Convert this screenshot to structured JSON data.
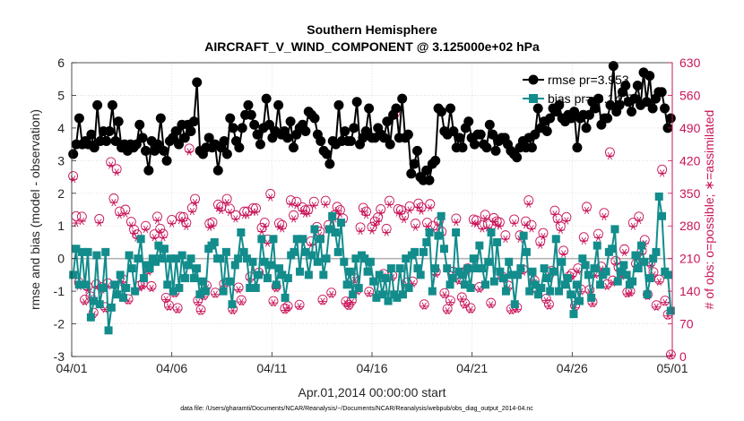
{
  "chart_data": {
    "type": "line",
    "title": "Southern Hemisphere",
    "subtitle": "AIRCRAFT_V_WIND_COMPONENT @ 3.125000e+02 hPa",
    "xlabel": "Apr.01,2014 00:00:00 start",
    "ylabel": "rmse and bias (model - observation)",
    "y2label": "# of obs: o=possible; ∗=assimilated",
    "footnote": "data file: /Users/gharamti/Documents/NCAR/Reanalysis/~/Documents/NCAR/Reanalysis/webpub/obs_diag_output_2014-04.nc",
    "xlim": [
      0,
      30
    ],
    "ylim": [
      -3,
      6
    ],
    "y2lim": [
      0,
      630
    ],
    "xticks": [
      0,
      5,
      10,
      15,
      20,
      25,
      30
    ],
    "xticklabels": [
      "04/01",
      "04/06",
      "04/11",
      "04/16",
      "04/21",
      "04/26",
      "05/01"
    ],
    "yticks": [
      -3,
      -2,
      -1,
      0,
      1,
      2,
      3,
      4,
      5,
      6
    ],
    "yticklabels": [
      "-3",
      "-2",
      "-1",
      "0",
      "1",
      "2",
      "3",
      "4",
      "5",
      "6"
    ],
    "y2ticks": [
      0,
      70,
      140,
      210,
      280,
      350,
      420,
      490,
      560,
      630
    ],
    "y2ticklabels": [
      "0",
      "70",
      "140",
      "210",
      "280",
      "350",
      "420",
      "490",
      "560",
      "630"
    ],
    "grid": true,
    "legend_position": "top-right",
    "colors": {
      "rmse": "#000000",
      "bias": "#138c8c",
      "obs": "#c8155a",
      "zero_line": "#b3b3b3",
      "grid": "#d9d9d9"
    },
    "series": [
      {
        "name": "rmse pr=3.953",
        "values": [
          3.2,
          3.5,
          4.3,
          3.5,
          3.6,
          3.5,
          3.8,
          3.4,
          4.7,
          3.6,
          3.9,
          3.6,
          3.9,
          4.7,
          3.6,
          4.2,
          3.4,
          3.5,
          3.3,
          3.5,
          3.4,
          3.5,
          4.1,
          3.7,
          3.3,
          2.7,
          3.6,
          3.3,
          3.5,
          4.3,
          3.3,
          3.0,
          3.6,
          3.7,
          3.9,
          3.5,
          4.1,
          3.7,
          4.1,
          3.9,
          4.2,
          5.4,
          3.3,
          3.2,
          3.4,
          3.7,
          3.4,
          3.5,
          2.7,
          3.4,
          3.6,
          3.2,
          4.3,
          4.0,
          3.6,
          3.4,
          4.0,
          4.4,
          4.7,
          4.4,
          4.1,
          3.8,
          3.5,
          4.0,
          4.9,
          4.1,
          3.7,
          3.9,
          4.7,
          3.8,
          3.9,
          3.7,
          4.2,
          3.4,
          3.8,
          4.0,
          4.1,
          3.9,
          4.5,
          4.4,
          4.3,
          3.8,
          3.6,
          3.3,
          3.2,
          2.9,
          3.6,
          3.5,
          4.7,
          3.6,
          3.9,
          3.6,
          3.6,
          4.0,
          4.8,
          3.5,
          3.7,
          3.9,
          4.6,
          3.7,
          3.7,
          4.0,
          3.8,
          3.7,
          4.2,
          3.5,
          4.4,
          4.6,
          3.7,
          4.9,
          3.7,
          3.8,
          2.6,
          2.9,
          3.3,
          2.5,
          2.4,
          2.7,
          2.4,
          2.9,
          3.0,
          4.6,
          4.5,
          3.9,
          3.8,
          4.6,
          3.9,
          3.4,
          3.7,
          3.4,
          4.0,
          4.2,
          3.7,
          3.5,
          3.8,
          3.8,
          3.5,
          3.4,
          4.1,
          3.8,
          3.3,
          3.6,
          3.7,
          3.7,
          3.5,
          3.3,
          3.2,
          3.1,
          3.4,
          3.6,
          3.4,
          3.7,
          3.4,
          3.8,
          4.6,
          4.0,
          4.2,
          3.9,
          4.3,
          4.6,
          4.5,
          4.7,
          4.3,
          4.2,
          4.4,
          4.3,
          4.5,
          3.4,
          4.3,
          4.4,
          4.0,
          4.4,
          4.8,
          4.6,
          4.9,
          4.1,
          4.3,
          4.3,
          4.7,
          5.9,
          4.5,
          4.7,
          5.1,
          5.3,
          4.8,
          4.5,
          4.9,
          5.3,
          4.7,
          5.7,
          4.8,
          5.6,
          4.6,
          4.9,
          5.1,
          5.1,
          4.6,
          4.0,
          4.3
        ]
      },
      {
        "name": "bias pr=-0.1437",
        "values": [
          -0.5,
          0.3,
          -0.8,
          0.2,
          -0.8,
          0.2,
          -1.8,
          -1.3,
          0.1,
          -1.4,
          -0.9,
          0.2,
          -2.2,
          -1.5,
          -0.8,
          -1.1,
          -0.5,
          -1.2,
          -0.9,
          0.1,
          -0.3,
          -1.0,
          0.0,
          0.6,
          -0.6,
          -0.2,
          -0.3,
          0.0,
          -0.1,
          0.4,
          0.0,
          0.3,
          -0.8,
          0.0,
          -1.0,
          0.0,
          -0.9,
          0.1,
          -0.6,
          -0.2,
          0.0,
          -0.6,
          -0.3,
          -1.1,
          -0.7,
          -1.0,
          0.3,
          0.4,
          0.5,
          0.0,
          0.0,
          -1.0,
          0.2,
          -0.7,
          -1.4,
          -0.2,
          0.0,
          0.8,
          0.2,
          0.0,
          -0.9,
          -0.1,
          -0.9,
          -0.5,
          0.6,
          -0.1,
          -0.6,
          -0.2,
          0.6,
          -0.8,
          -0.3,
          -0.5,
          -1.2,
          -0.6,
          0.1,
          0.2,
          0.6,
          -0.4,
          0.6,
          0.2,
          -0.5,
          0.1,
          0.9,
          -0.1,
          0.6,
          -0.5,
          0.0,
          0.9,
          1.3,
          0.8,
          0.2,
          1.1,
          -0.1,
          -0.8,
          -0.4,
          -1.1,
          0.0,
          -0.9,
          0.1,
          0.0,
          -0.4,
          -0.1,
          -0.7,
          -1.2,
          -0.5,
          -1.1,
          -0.6,
          -1.3,
          -0.3,
          -1.1,
          -1.2,
          -0.3,
          -1.1,
          0.0,
          -0.9,
          0.1,
          0.2,
          -0.3,
          -0.5,
          0.2,
          0.5,
          0.8,
          -1.0,
          -0.3,
          0.7,
          1.3,
          0.3,
          -0.3,
          -0.8,
          -0.6,
          0.8,
          -0.4,
          -0.5,
          -0.8,
          -0.3,
          -0.9,
          0.0,
          -0.3,
          0.4,
          -0.3,
          -0.8,
          -0.1,
          0.8,
          -0.7,
          0.5,
          -0.4,
          -0.6,
          -1.0,
          -0.1,
          -0.5,
          -1.4,
          -0.5,
          -0.3,
          0.7,
          0.2,
          -1.0,
          -0.4,
          -0.8,
          -1.1,
          -0.9,
          -0.3,
          -0.6,
          -1.0,
          -0.4,
          0.6,
          -1.0,
          -0.1,
          -0.8,
          -0.6,
          -1.1,
          -1.7,
          -0.8,
          -1.3,
          0.0,
          -0.2,
          -0.5,
          -1.2,
          -0.3,
          0.4,
          -0.8,
          -0.5,
          -0.4,
          0.2,
          0.3,
          0.9,
          -0.7,
          -0.4,
          -0.2,
          -0.5,
          -0.8,
          -0.7,
          0.1,
          -0.3,
          0.4,
          -0.1,
          -1.1,
          -0.6,
          0.0,
          0.2,
          1.9,
          1.3,
          -0.4,
          -0.5,
          -1.6
        ]
      },
      {
        "name": "obs possible",
        "values": [
          387,
          301,
          159,
          300,
          122,
          150,
          129,
          94,
          155,
          295,
          149,
          106,
          157,
          417,
          339,
          402,
          311,
          166,
          315,
          123,
          289,
          272,
          262,
          152,
          156,
          280,
          187,
          151,
          262,
          300,
          274,
          263,
          126,
          110,
          293,
          138,
          104,
          300,
          299,
          287,
          446,
          319,
          338,
          120,
          100,
          132,
          152,
          285,
          288,
          137,
          326,
          321,
          156,
          338,
          317,
          102,
          303,
          148,
          121,
          311,
          311,
          171,
          318,
          318,
          180,
          276,
          287,
          251,
          349,
          119,
          150,
          286,
          282,
          103,
          108,
          335,
          303,
          332,
          111,
          320,
          314,
          315,
          247,
          332,
          278,
          268,
          122,
          334,
          282,
          137,
          303,
          321,
          314,
          296,
          118,
          111,
          120,
          168,
          144,
          277,
          319,
          311,
          139,
          278,
          290,
          298,
          316,
          177,
          274,
          334,
          174,
          523,
          316,
          314,
          302,
          159,
          322,
          161,
          285,
          328,
          320,
          112,
          287,
          327,
          280,
          182,
          290,
          268,
          136,
          102,
          120,
          182,
          296,
          166,
          127,
          114,
          189,
          104,
          294,
          292,
          149,
          282,
          304,
          284,
          115,
          297,
          290,
          288,
          171,
          260,
          152,
          102,
          294,
          105,
          260,
          187,
          290,
          335,
          282,
          163,
          144,
          247,
          265,
          124,
          112,
          184,
          313,
          296,
          279,
          227,
          299,
          172,
          178,
          109,
          189,
          144,
          256,
          321,
          143,
          117,
          180,
          263,
          193,
          308,
          155,
          438,
          163,
          205,
          191,
          178,
          230,
          138,
          140,
          287,
          199,
          300,
          227,
          250,
          133,
          201,
          181,
          110,
          165,
          401,
          120,
          90,
          4
        ]
      },
      {
        "name": "obs assimilated",
        "values": [
          380,
          286,
          150,
          290,
          117,
          143,
          125,
          90,
          149,
          287,
          143,
          101,
          151,
          410,
          330,
          395,
          303,
          160,
          306,
          119,
          281,
          264,
          254,
          147,
          151,
          273,
          181,
          146,
          255,
          292,
          267,
          255,
          122,
          106,
          285,
          134,
          100,
          292,
          291,
          279,
          439,
          311,
          330,
          116,
          97,
          128,
          147,
          277,
          280,
          133,
          318,
          313,
          151,
          330,
          309,
          98,
          295,
          143,
          117,
          303,
          303,
          166,
          310,
          310,
          174,
          268,
          279,
          243,
          341,
          115,
          145,
          278,
          274,
          99,
          104,
          327,
          295,
          324,
          107,
          312,
          306,
          307,
          239,
          324,
          270,
          260,
          118,
          326,
          274,
          133,
          295,
          313,
          306,
          288,
          114,
          107,
          116,
          163,
          139,
          269,
          311,
          303,
          135,
          270,
          282,
          290,
          308,
          172,
          266,
          326,
          169,
          515,
          308,
          306,
          294,
          154,
          314,
          156,
          277,
          320,
          312,
          108,
          279,
          319,
          272,
          176,
          282,
          260,
          132,
          98,
          116,
          176,
          288,
          161,
          123,
          110,
          183,
          100,
          286,
          284,
          144,
          274,
          296,
          276,
          111,
          289,
          282,
          280,
          166,
          252,
          147,
          98,
          286,
          101,
          252,
          181,
          282,
          327,
          274,
          158,
          139,
          239,
          257,
          120,
          108,
          178,
          305,
          288,
          271,
          220,
          291,
          167,
          172,
          105,
          183,
          139,
          248,
          313,
          138,
          113,
          174,
          255,
          187,
          300,
          150,
          430,
          158,
          199,
          185,
          172,
          223,
          134,
          136,
          279,
          193,
          292,
          220,
          242,
          129,
          195,
          175,
          106,
          160,
          393,
          116,
          87,
          2
        ]
      }
    ]
  }
}
